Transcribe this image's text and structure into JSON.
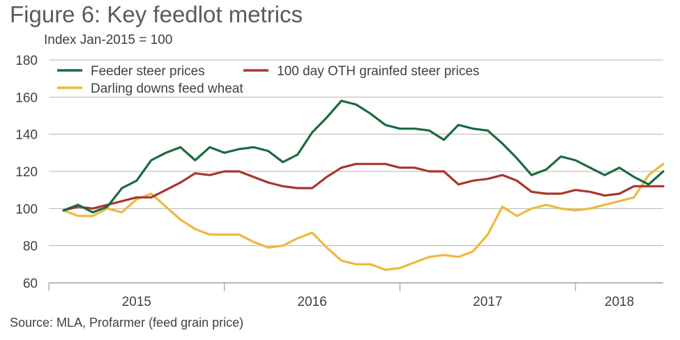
{
  "figure": {
    "title": "Figure 6: Key feedlot metrics",
    "subtitle": "Index Jan-2015 = 100",
    "source": "Source: MLA, Profarmer (feed grain price)"
  },
  "chart_data": {
    "type": "line",
    "title": "Figure 6: Key feedlot metrics",
    "ylabel": "Index Jan-2015 = 100",
    "xlabel": "",
    "ylim": [
      60,
      180
    ],
    "yticks": [
      60,
      80,
      100,
      120,
      140,
      160,
      180
    ],
    "xlim": [
      "2014-12",
      "2018-06"
    ],
    "year_labels": [
      {
        "label": "2015",
        "center": "2015-06"
      },
      {
        "label": "2016",
        "center": "2016-06"
      },
      {
        "label": "2017",
        "center": "2017-06"
      },
      {
        "label": "2018",
        "center": "2018-03"
      }
    ],
    "x_dividers": [
      "2014-12",
      "2015-12",
      "2016-12",
      "2017-12"
    ],
    "grid": true,
    "legend": "top-left",
    "x": [
      "2015-01",
      "2015-02",
      "2015-03",
      "2015-04",
      "2015-05",
      "2015-06",
      "2015-07",
      "2015-08",
      "2015-09",
      "2015-10",
      "2015-11",
      "2015-12",
      "2016-01",
      "2016-02",
      "2016-03",
      "2016-04",
      "2016-05",
      "2016-06",
      "2016-07",
      "2016-08",
      "2016-09",
      "2016-10",
      "2016-11",
      "2016-12",
      "2017-01",
      "2017-02",
      "2017-03",
      "2017-04",
      "2017-05",
      "2017-06",
      "2017-07",
      "2017-08",
      "2017-09",
      "2017-10",
      "2017-11",
      "2017-12",
      "2018-01",
      "2018-02",
      "2018-03",
      "2018-04",
      "2018-05",
      "2018-06"
    ],
    "series": [
      {
        "name": "Feeder steer prices",
        "color": "#1a6b3f",
        "values": [
          99,
          102,
          98,
          101,
          111,
          115,
          126,
          130,
          133,
          126,
          133,
          130,
          132,
          133,
          131,
          125,
          129,
          141,
          149,
          158,
          156,
          151,
          145,
          143,
          143,
          142,
          137,
          145,
          143,
          142,
          135,
          127,
          118,
          121,
          128,
          126,
          122,
          118,
          122,
          117,
          113,
          120
        ]
      },
      {
        "name": "100 day OTH grainfed steer prices",
        "color": "#a8362c",
        "values": [
          99,
          101,
          100,
          102,
          104,
          106,
          106,
          110,
          114,
          119,
          118,
          120,
          120,
          117,
          114,
          112,
          111,
          111,
          117,
          122,
          124,
          124,
          124,
          122,
          122,
          120,
          120,
          113,
          115,
          116,
          118,
          115,
          109,
          108,
          108,
          110,
          109,
          107,
          108,
          112,
          112,
          112
        ]
      },
      {
        "name": "Darling downs feed wheat",
        "color": "#efb73e",
        "values": [
          99,
          96,
          96,
          100,
          98,
          105,
          108,
          101,
          94,
          89,
          86,
          86,
          86,
          82,
          79,
          80,
          84,
          87,
          79,
          72,
          70,
          70,
          67,
          68,
          71,
          74,
          75,
          74,
          77,
          86,
          101,
          96,
          100,
          102,
          100,
          99,
          100,
          102,
          104,
          106,
          118,
          124
        ]
      }
    ]
  }
}
